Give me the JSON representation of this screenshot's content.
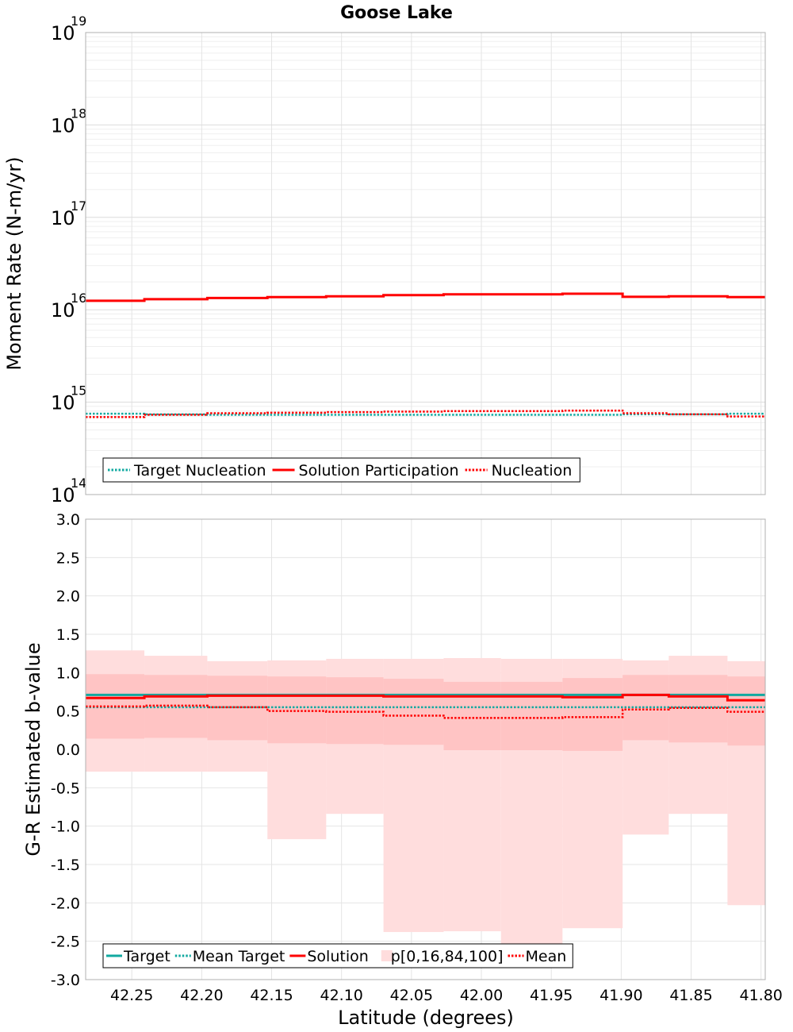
{
  "title": "Goose Lake",
  "colors": {
    "target": "#12a9a0",
    "solution": "#ff0000",
    "band_outer": "#ffdddd",
    "band_inner": "#ffc4c4",
    "grid": "#e4e4e4",
    "frame": "#b0b0b0"
  },
  "chart_data": [
    {
      "type": "line",
      "panel": "top",
      "step": true,
      "yscale": "log",
      "ylabel": "Moment Rate (N-m/yr)",
      "ylim": [
        100000000000000.0,
        1e+19
      ],
      "xlim": [
        42.283,
        41.797
      ],
      "x_reversed": true,
      "grid": true,
      "legend_position": "lower-left",
      "y_ticks": [
        {
          "base": "10",
          "exp": "14",
          "value": 100000000000000.0
        },
        {
          "base": "10",
          "exp": "15",
          "value": 1000000000000000.0
        },
        {
          "base": "10",
          "exp": "16",
          "value": 1e+16
        },
        {
          "base": "10",
          "exp": "17",
          "value": 1e+17
        },
        {
          "base": "10",
          "exp": "18",
          "value": 1e+18
        },
        {
          "base": "10",
          "exp": "19",
          "value": 1e+19
        }
      ],
      "x_edges": [
        42.283,
        42.241,
        42.196,
        42.153,
        42.111,
        42.07,
        42.027,
        41.986,
        41.942,
        41.899,
        41.866,
        41.824,
        41.797
      ],
      "series": [
        {
          "name": "Target Nucleation",
          "style": "dotted",
          "color_key": "target",
          "values": [
            750000000000000.0,
            740000000000000.0,
            730000000000000.0,
            730000000000000.0,
            730000000000000.0,
            730000000000000.0,
            730000000000000.0,
            730000000000000.0,
            730000000000000.0,
            740000000000000.0,
            740000000000000.0,
            750000000000000.0
          ]
        },
        {
          "name": "Solution Participation",
          "style": "solid",
          "color_key": "solution",
          "values": [
            1.25e+16,
            1.3e+16,
            1.34e+16,
            1.37e+16,
            1.4e+16,
            1.44e+16,
            1.47e+16,
            1.47e+16,
            1.49e+16,
            1.38e+16,
            1.4e+16,
            1.37e+16
          ]
        },
        {
          "name": "Nucleation",
          "style": "dotted",
          "color_key": "solution",
          "values": [
            690000000000000.0,
            730000000000000.0,
            760000000000000.0,
            770000000000000.0,
            780000000000000.0,
            790000000000000.0,
            800000000000000.0,
            800000000000000.0,
            810000000000000.0,
            760000000000000.0,
            740000000000000.0,
            700000000000000.0
          ]
        }
      ]
    },
    {
      "type": "line",
      "panel": "bottom",
      "step": true,
      "ylabel": "G-R Estimated b-value",
      "xlabel": "Latitude (degrees)",
      "ylim": [
        -3.0,
        3.0
      ],
      "xlim": [
        42.283,
        41.797
      ],
      "x_reversed": true,
      "grid": true,
      "legend_position": "lower-left",
      "y_ticks": [
        "-3.0",
        "-2.5",
        "-2.0",
        "-1.5",
        "-1.0",
        "-0.5",
        "0.0",
        "0.5",
        "1.0",
        "1.5",
        "2.0",
        "2.5",
        "3.0"
      ],
      "x_ticks": [
        "42.25",
        "42.20",
        "42.15",
        "42.10",
        "42.05",
        "42.00",
        "41.95",
        "41.90",
        "41.85",
        "41.80"
      ],
      "x_edges": [
        42.283,
        42.241,
        42.196,
        42.153,
        42.111,
        42.07,
        42.027,
        41.986,
        41.942,
        41.899,
        41.866,
        41.824,
        41.797
      ],
      "bands": {
        "name": "p[0,16,84,100]",
        "p0": [
          -0.29,
          -0.29,
          -0.29,
          -1.17,
          -0.84,
          -2.38,
          -2.37,
          -2.75,
          -2.33,
          -1.11,
          -0.84,
          -2.03
        ],
        "p16": [
          0.14,
          0.15,
          0.12,
          0.08,
          0.07,
          0.06,
          -0.01,
          -0.01,
          -0.02,
          0.12,
          0.09,
          0.05
        ],
        "p84": [
          0.98,
          0.97,
          0.96,
          0.95,
          0.94,
          0.92,
          0.88,
          0.88,
          0.93,
          0.97,
          0.97,
          0.95
        ],
        "p100": [
          1.29,
          1.22,
          1.15,
          1.16,
          1.18,
          1.18,
          1.19,
          1.18,
          1.18,
          1.16,
          1.22,
          1.15
        ]
      },
      "series": [
        {
          "name": "Target",
          "style": "solid",
          "color_key": "target",
          "values": [
            0.71,
            0.71,
            0.71,
            0.71,
            0.71,
            0.71,
            0.71,
            0.71,
            0.71,
            0.71,
            0.71,
            0.71
          ]
        },
        {
          "name": "Mean Target",
          "style": "dotted",
          "color_key": "target",
          "values": [
            0.55,
            0.55,
            0.55,
            0.55,
            0.55,
            0.55,
            0.55,
            0.55,
            0.55,
            0.55,
            0.55,
            0.55
          ]
        },
        {
          "name": "Solution",
          "style": "solid",
          "color_key": "solution",
          "values": [
            0.67,
            0.69,
            0.7,
            0.7,
            0.7,
            0.69,
            0.69,
            0.69,
            0.68,
            0.71,
            0.69,
            0.64
          ]
        },
        {
          "name": "Mean",
          "style": "dotted",
          "color_key": "solution",
          "values": [
            0.56,
            0.57,
            0.55,
            0.5,
            0.49,
            0.44,
            0.41,
            0.41,
            0.42,
            0.52,
            0.54,
            0.49
          ]
        }
      ]
    }
  ],
  "legends": {
    "top": [
      "Target Nucleation",
      "Solution Participation",
      "Nucleation"
    ],
    "bottom": [
      "Target",
      "Mean Target",
      "Solution",
      "p[0,16,84,100]",
      "Mean"
    ]
  }
}
